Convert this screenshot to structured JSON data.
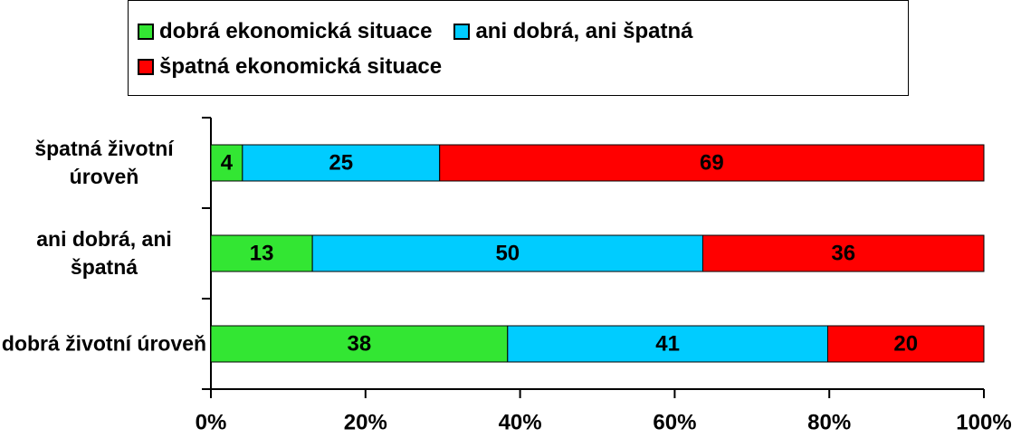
{
  "chart_data": {
    "type": "bar",
    "orientation": "horizontal",
    "stacked": "percent",
    "categories": [
      "špatná životní úroveň",
      "ani dobrá, ani špatná",
      "dobrá životní úroveň"
    ],
    "series": [
      {
        "name": "dobrá ekonomická situace",
        "color": "#33e633",
        "values": [
          4,
          13,
          38
        ]
      },
      {
        "name": "ani dobrá, ani špatná",
        "color": "#00ccff",
        "values": [
          25,
          50,
          41
        ]
      },
      {
        "name": "špatná ekonomická situace",
        "color": "#ff0000",
        "values": [
          69,
          36,
          20
        ]
      }
    ],
    "xlim": [
      0,
      100
    ],
    "xticks": [
      {
        "value": 0,
        "label": "0%"
      },
      {
        "value": 20,
        "label": "20%"
      },
      {
        "value": 40,
        "label": "40%"
      },
      {
        "value": 60,
        "label": "60%"
      },
      {
        "value": 80,
        "label": "80%"
      },
      {
        "value": 100,
        "label": "100%"
      }
    ],
    "legend": "top"
  }
}
